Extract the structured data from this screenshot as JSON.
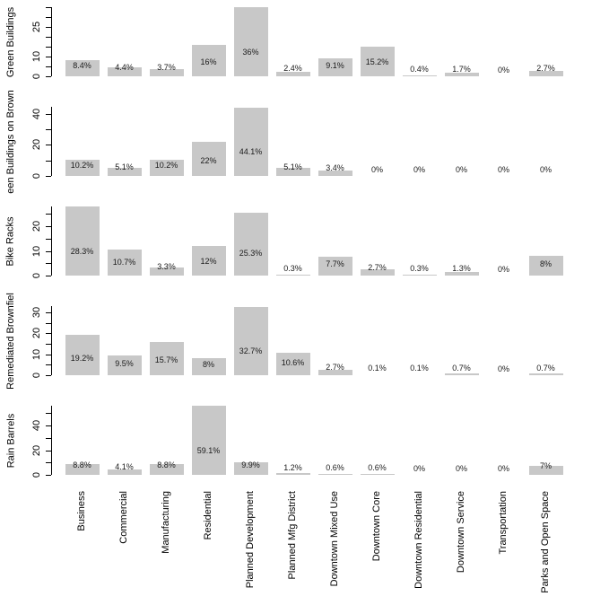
{
  "title": "",
  "chart_data": {
    "type": "bar",
    "orientation": "vertical",
    "grid": false,
    "legend": false,
    "bar_color": "#c8c8c8",
    "text_color": "#000000",
    "categories": [
      "Business",
      "Commercial",
      "Manufacturing",
      "Residential",
      "Planned Development",
      "Planned Mfg District",
      "Downtown Mixed Use",
      "Downtown Core",
      "Downtown Residential",
      "Downtown Service",
      "Transportation",
      "Parks and Open Space"
    ],
    "panels": [
      {
        "ylabel": "Green Buildings",
        "ylim": [
          0,
          35.2
        ],
        "tick_step": 5,
        "tick_max": 35,
        "labeled_ticks": [
          0,
          10,
          25
        ],
        "values": [
          8.4,
          4.4,
          3.7,
          16,
          36,
          2.4,
          9.1,
          15.2,
          0.4,
          1.7,
          0,
          2.7
        ],
        "value_labels": [
          "8.4%",
          "4.4%",
          "3.7%",
          "16%",
          "36%",
          "2.4%",
          "9.1%",
          "15.2%",
          "0.4%",
          "1.7%",
          "0%",
          "2.7%"
        ]
      },
      {
        "ylabel": "een Buildings on Brown",
        "ylim": [
          0,
          44.5
        ],
        "tick_step": 10,
        "tick_max": 40,
        "labeled_ticks": [
          0,
          20,
          40
        ],
        "values": [
          10.2,
          5.1,
          10.2,
          22,
          44.1,
          5.1,
          3.4,
          0,
          0,
          0,
          0,
          0
        ],
        "value_labels": [
          "10.2%",
          "5.1%",
          "10.2%",
          "22%",
          "44.1%",
          "5.1%",
          "3.4%",
          "0%",
          "0%",
          "0%",
          "0%",
          "0%"
        ]
      },
      {
        "ylabel": "Bike Racks",
        "ylim": [
          0,
          28
        ],
        "tick_step": 5,
        "tick_max": 25,
        "labeled_ticks": [
          0,
          10,
          20
        ],
        "values": [
          28.3,
          10.7,
          3.3,
          12,
          25.3,
          0.3,
          7.7,
          2.7,
          0.3,
          1.3,
          0,
          8
        ],
        "value_labels": [
          "28.3%",
          "10.7%",
          "3.3%",
          "12%",
          "25.3%",
          "0.3%",
          "7.7%",
          "2.7%",
          "0.3%",
          "1.3%",
          "0%",
          "8%"
        ]
      },
      {
        "ylabel": "Remediated Brownfiel",
        "ylim": [
          0,
          33
        ],
        "tick_step": 5,
        "tick_max": 30,
        "labeled_ticks": [
          0,
          10,
          20,
          30
        ],
        "values": [
          19.2,
          9.5,
          15.7,
          8,
          32.7,
          10.6,
          2.7,
          0.1,
          0.1,
          0.7,
          0,
          0.7
        ],
        "value_labels": [
          "19.2%",
          "9.5%",
          "15.7%",
          "8%",
          "32.7%",
          "10.6%",
          "2.7%",
          "0.1%",
          "0.1%",
          "0.7%",
          "0%",
          "0.7%"
        ]
      },
      {
        "ylabel": "Rain Barrels",
        "ylim": [
          0,
          56
        ],
        "tick_step": 10,
        "tick_max": 50,
        "labeled_ticks": [
          0,
          20,
          40
        ],
        "values": [
          8.8,
          4.1,
          8.8,
          59.1,
          9.9,
          1.2,
          0.6,
          0.6,
          0,
          0,
          0,
          7
        ],
        "value_labels": [
          "8.8%",
          "4.1%",
          "8.8%",
          "59.1%",
          "9.9%",
          "1.2%",
          "0.6%",
          "0.6%",
          "0%",
          "0%",
          "0%",
          "7%"
        ]
      }
    ]
  }
}
